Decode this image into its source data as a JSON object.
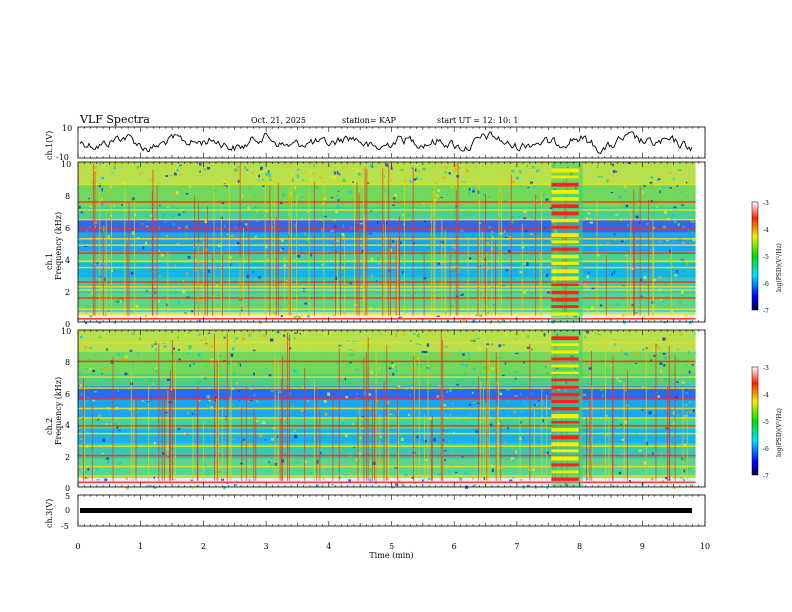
{
  "header": {
    "title": "VLF Spectra",
    "date": "Oct. 21, 2025",
    "station": "station= KAP",
    "start": "start  UT  =   12: 10: 1"
  },
  "chart_data": [
    {
      "id": "ch1-waveform",
      "type": "line",
      "ylabel": "ch.1(V)",
      "ylim": [
        -10,
        10
      ],
      "yticks": [
        "10",
        "-10"
      ],
      "xlim": [
        0,
        10
      ]
    },
    {
      "id": "ch1-spectrogram",
      "type": "heatmap",
      "ylabel": "Frequency (kHz)",
      "channel_label": "ch.1",
      "ylim": [
        0,
        10
      ],
      "yticks": [
        "0",
        "2",
        "4",
        "6",
        "8",
        "10"
      ],
      "xlim": [
        0,
        10
      ],
      "colorbar": {
        "label": "log(PSD)(V²/Hz)",
        "range": [
          -7,
          -3
        ],
        "ticks": [
          "-3",
          "-4",
          "-5",
          "-6",
          "-7"
        ]
      },
      "hum_lines_khz": [
        0.2,
        0.5,
        0.8,
        1.5,
        2.0,
        2.2,
        2.5,
        3.4,
        3.8,
        4.3,
        4.8,
        5.2,
        5.8,
        6.4,
        7.0,
        7.5,
        8.6
      ],
      "event_interval_min": [
        7.55,
        8.05
      ]
    },
    {
      "id": "ch2-spectrogram",
      "type": "heatmap",
      "ylabel": "Frequency (kHz)",
      "channel_label": "ch.2",
      "ylim": [
        0,
        10
      ],
      "yticks": [
        "0",
        "2",
        "4",
        "6",
        "8",
        "10"
      ],
      "xlim": [
        0,
        10
      ],
      "colorbar": {
        "label": "log(PSD)(V²/Hz)",
        "range": [
          -7,
          -3
        ],
        "ticks": [
          "-3",
          "-4",
          "-5",
          "-6",
          "-7"
        ]
      },
      "hum_lines_khz": [
        0.3,
        0.7,
        1.3,
        2.0,
        2.6,
        3.4,
        3.9,
        4.4,
        5.0,
        5.6,
        6.3,
        7.0,
        8.0,
        9.2
      ],
      "event_interval_min": [
        7.55,
        8.05
      ]
    },
    {
      "id": "ch3-waveform",
      "type": "line",
      "ylabel": "ch.3(V)",
      "ylim": [
        -5,
        5
      ],
      "yticks": [
        "5",
        "0",
        "-5"
      ],
      "xlim": [
        0,
        10
      ],
      "xlabel": "Time (min)",
      "xticks": [
        "0",
        "1",
        "2",
        "3",
        "4",
        "5",
        "6",
        "7",
        "8",
        "9",
        "10"
      ]
    }
  ]
}
